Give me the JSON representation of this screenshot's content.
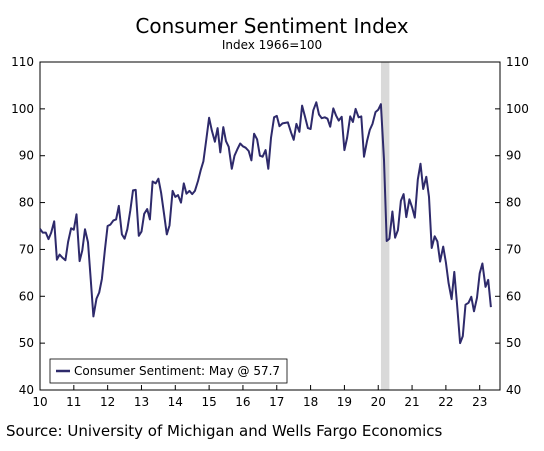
{
  "chart_data": {
    "type": "line",
    "title": "Consumer Sentiment Index",
    "subtitle": "Index 1966=100",
    "source": "Source: University of Michigan and Wells Fargo Economics",
    "ylim": [
      40,
      110
    ],
    "yticks": [
      "110",
      "100",
      "90",
      "80",
      "70",
      "60",
      "50",
      "40"
    ],
    "xlim": [
      2010,
      2023.6
    ],
    "xticks": [
      "10",
      "11",
      "12",
      "13",
      "14",
      "15",
      "16",
      "17",
      "18",
      "19",
      "20",
      "21",
      "22",
      "23"
    ],
    "recession": [
      2020.08,
      2020.33
    ],
    "legend": "Consumer Sentiment: May @ 57.7",
    "legend_position": "bottom-left",
    "colors": {
      "line": "#2e2a6b",
      "recession": "#d9d9d9"
    },
    "series": [
      {
        "x": [
          2010.0,
          2010.08,
          2010.17,
          2010.25,
          2010.33,
          2010.42,
          2010.5,
          2010.58,
          2010.67,
          2010.75,
          2010.83,
          2010.92,
          2011.0,
          2011.08,
          2011.17,
          2011.25,
          2011.33,
          2011.42,
          2011.5,
          2011.58,
          2011.67,
          2011.75,
          2011.83,
          2011.92,
          2012.0,
          2012.08,
          2012.17,
          2012.25,
          2012.33,
          2012.42,
          2012.5,
          2012.58,
          2012.67,
          2012.75,
          2012.83,
          2012.92,
          2013.0,
          2013.08,
          2013.17,
          2013.25,
          2013.33,
          2013.42,
          2013.5,
          2013.58,
          2013.67,
          2013.75,
          2013.83,
          2013.92,
          2014.0,
          2014.08,
          2014.17,
          2014.25,
          2014.33,
          2014.42,
          2014.5,
          2014.58,
          2014.67,
          2014.75,
          2014.83,
          2014.92,
          2015.0,
          2015.08,
          2015.17,
          2015.25,
          2015.33,
          2015.42,
          2015.5,
          2015.58,
          2015.67,
          2015.75,
          2015.83,
          2015.92,
          2016.0,
          2016.08,
          2016.17,
          2016.25,
          2016.33,
          2016.42,
          2016.5,
          2016.58,
          2016.67,
          2016.75,
          2016.83,
          2016.92,
          2017.0,
          2017.08,
          2017.17,
          2017.25,
          2017.33,
          2017.42,
          2017.5,
          2017.58,
          2017.67,
          2017.75,
          2017.83,
          2017.92,
          2018.0,
          2018.08,
          2018.17,
          2018.25,
          2018.33,
          2018.42,
          2018.5,
          2018.58,
          2018.67,
          2018.75,
          2018.83,
          2018.92,
          2019.0,
          2019.08,
          2019.17,
          2019.25,
          2019.33,
          2019.42,
          2019.5,
          2019.58,
          2019.67,
          2019.75,
          2019.83,
          2019.92,
          2020.0,
          2020.08,
          2020.17,
          2020.25,
          2020.33,
          2020.42,
          2020.5,
          2020.58,
          2020.67,
          2020.75,
          2020.83,
          2020.92,
          2021.0,
          2021.08,
          2021.17,
          2021.25,
          2021.33,
          2021.42,
          2021.5,
          2021.58,
          2021.67,
          2021.75,
          2021.83,
          2021.92,
          2022.0,
          2022.08,
          2022.17,
          2022.25,
          2022.33,
          2022.42,
          2022.5,
          2022.58,
          2022.67,
          2022.75,
          2022.83,
          2022.92,
          2023.0,
          2023.08,
          2023.17,
          2023.25,
          2023.33
        ],
        "y": [
          74.4,
          73.6,
          73.6,
          72.2,
          73.6,
          76.0,
          67.8,
          68.9,
          68.2,
          67.7,
          71.6,
          74.5,
          74.2,
          77.5,
          67.5,
          69.8,
          74.3,
          71.5,
          63.7,
          55.7,
          59.5,
          60.8,
          63.7,
          69.9,
          75.0,
          75.3,
          76.2,
          76.4,
          79.3,
          73.2,
          72.3,
          74.3,
          78.3,
          82.6,
          82.7,
          72.9,
          73.8,
          77.6,
          78.6,
          76.4,
          84.5,
          84.1,
          85.1,
          82.1,
          77.5,
          73.2,
          75.1,
          82.5,
          81.2,
          81.6,
          80.0,
          84.1,
          81.9,
          82.5,
          81.8,
          82.5,
          84.6,
          86.9,
          88.8,
          93.6,
          98.1,
          95.4,
          93.0,
          95.9,
          90.7,
          96.1,
          93.1,
          91.9,
          87.2,
          90.0,
          91.3,
          92.6,
          92.0,
          91.7,
          91.0,
          89.0,
          94.7,
          93.5,
          90.0,
          89.8,
          91.2,
          87.2,
          93.8,
          98.2,
          98.5,
          96.3,
          96.9,
          97.0,
          97.1,
          95.0,
          93.4,
          96.8,
          95.1,
          100.7,
          98.5,
          95.9,
          95.7,
          99.7,
          101.4,
          98.8,
          98.0,
          98.2,
          97.9,
          96.2,
          100.1,
          98.6,
          97.5,
          98.3,
          91.2,
          93.8,
          98.4,
          97.2,
          100.0,
          98.2,
          98.4,
          89.8,
          93.2,
          95.5,
          96.8,
          99.3,
          99.8,
          101.0,
          89.1,
          71.8,
          72.3,
          78.1,
          72.5,
          74.1,
          80.4,
          81.8,
          76.9,
          80.7,
          79.0,
          76.8,
          84.9,
          88.3,
          82.9,
          85.5,
          81.2,
          70.3,
          72.8,
          71.7,
          67.4,
          70.6,
          67.2,
          62.8,
          59.4,
          65.2,
          58.4,
          50.0,
          51.5,
          58.2,
          58.6,
          59.9,
          56.8,
          59.7,
          64.9,
          67.0,
          62.0,
          63.5,
          57.7
        ]
      }
    ]
  }
}
